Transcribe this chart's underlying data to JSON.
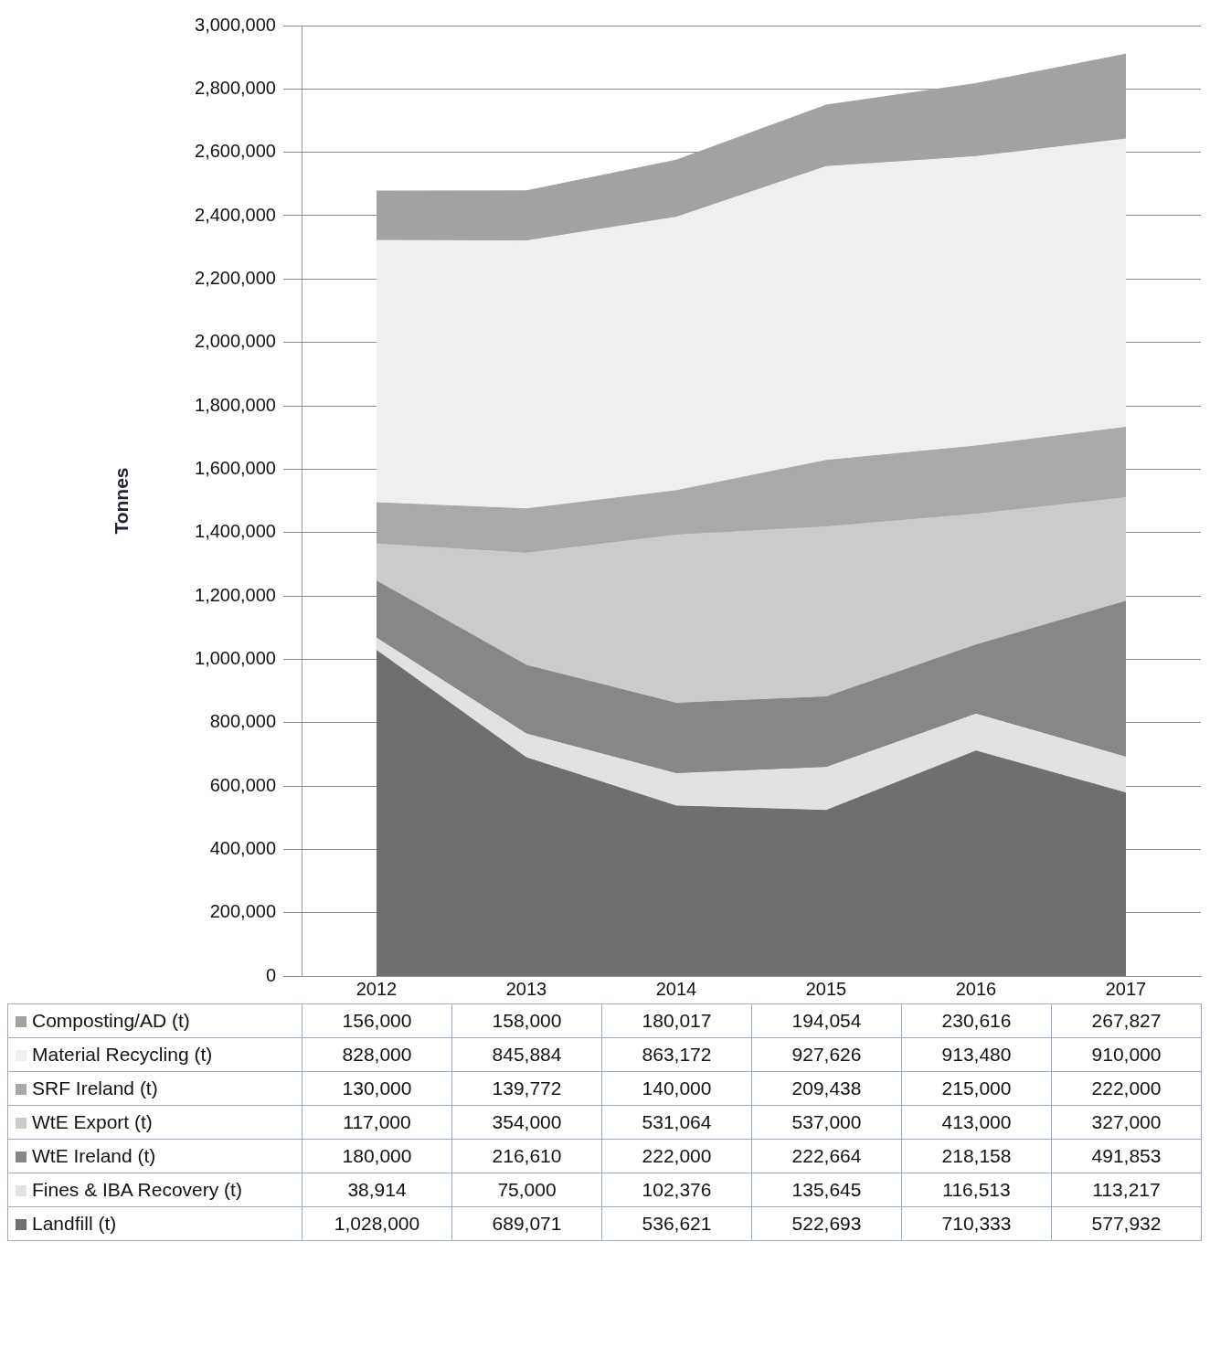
{
  "chart_data": {
    "type": "area",
    "ylabel": "Tonnes",
    "stacked": true,
    "categories": [
      "2012",
      "2013",
      "2014",
      "2015",
      "2016",
      "2017"
    ],
    "series": [
      {
        "name": "Landfill (t)",
        "color": "#6f6f6f",
        "values": [
          1028000,
          689071,
          536621,
          522693,
          710333,
          577932
        ],
        "value_labels": [
          "1,028,000",
          "689,071",
          "536,621",
          "522,693",
          "710,333",
          "577,932"
        ]
      },
      {
        "name": "Fines & IBA Recovery (t)",
        "color": "#e2e2e2",
        "values": [
          38914,
          75000,
          102376,
          135645,
          116513,
          113217
        ],
        "value_labels": [
          "38,914",
          "75,000",
          "102,376",
          "135,645",
          "116,513",
          "113,217"
        ]
      },
      {
        "name": "WtE Ireland (t)",
        "color": "#878787",
        "values": [
          180000,
          216610,
          222000,
          222664,
          218158,
          491853
        ],
        "value_labels": [
          "180,000",
          "216,610",
          "222,000",
          "222,664",
          "218,158",
          "491,853"
        ]
      },
      {
        "name": "WtE Export (t)",
        "color": "#cbcbcb",
        "values": [
          117000,
          354000,
          531064,
          537000,
          413000,
          327000
        ],
        "value_labels": [
          "117,000",
          "354,000",
          "531,064",
          "537,000",
          "413,000",
          "327,000"
        ]
      },
      {
        "name": "SRF Ireland (t)",
        "color": "#a9a9a9",
        "values": [
          130000,
          139772,
          140000,
          209438,
          215000,
          222000
        ],
        "value_labels": [
          "130,000",
          "139,772",
          "140,000",
          "209,438",
          "215,000",
          "222,000"
        ]
      },
      {
        "name": "Material Recycling (t)",
        "color": "#efefef",
        "values": [
          828000,
          845884,
          863172,
          927626,
          913480,
          910000
        ],
        "value_labels": [
          "828,000",
          "845,884",
          "863,172",
          "927,626",
          "913,480",
          "910,000"
        ]
      },
      {
        "name": "Composting/AD (t)",
        "color": "#a2a2a2",
        "values": [
          156000,
          158000,
          180017,
          194054,
          230616,
          267827
        ],
        "value_labels": [
          "156,000",
          "158,000",
          "180,017",
          "194,054",
          "230,616",
          "267,827"
        ]
      }
    ],
    "ylim": [
      0,
      3000000
    ],
    "yticks": [
      0,
      {
        "value": 200000,
        "label": "200,000"
      },
      {
        "value": 400000,
        "label": "400,000"
      },
      {
        "value": 600000,
        "label": "600,000"
      },
      {
        "value": 800000,
        "label": "800,000"
      },
      {
        "value": 1000000,
        "label": "1,000,000"
      },
      {
        "value": 1200000,
        "label": "1,200,000"
      },
      {
        "value": 1400000,
        "label": "1,400,000"
      },
      {
        "value": 1600000,
        "label": "1,600,000"
      },
      {
        "value": 1800000,
        "label": "1,800,000"
      },
      {
        "value": 2000000,
        "label": "2,000,000"
      },
      {
        "value": 2200000,
        "label": "2,200,000"
      },
      {
        "value": 2400000,
        "label": "2,400,000"
      },
      {
        "value": 2600000,
        "label": "2,600,000"
      },
      {
        "value": 2800000,
        "label": "2,800,000"
      },
      {
        "value": 3000000,
        "label": "3,000,000"
      }
    ],
    "grid": "y",
    "legend": "bottom"
  }
}
